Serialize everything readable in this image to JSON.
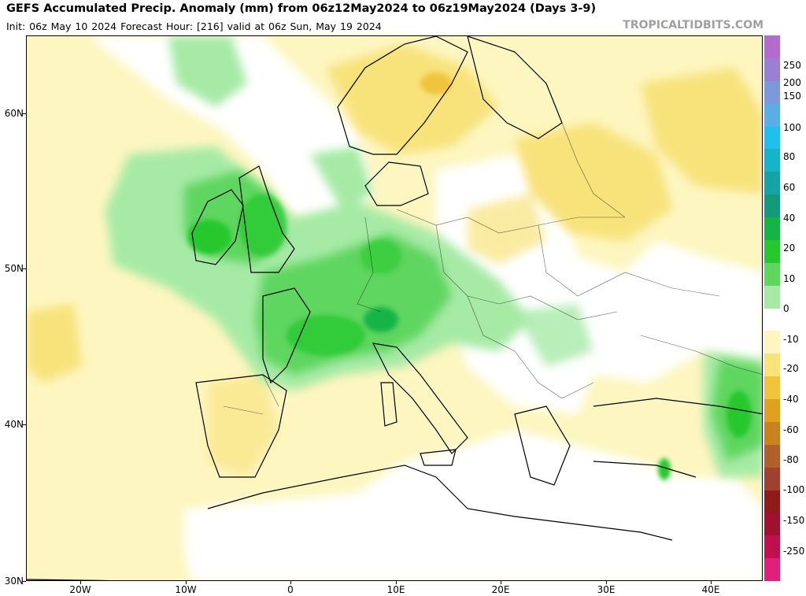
{
  "header": {
    "title": "GEFS Accumulated Precip. Anomaly (mm) from 06z12May2024 to 06z19May2024 (Days 3-9)",
    "subtitle": "Init: 06z May 10 2024   Forecast Hour: [216]   valid at 06z Sun, May 19 2024",
    "credit": "TROPICALTIDBITS.COM"
  },
  "axes": {
    "lat_labels": [
      "60N",
      "50N",
      "40N",
      "30N"
    ],
    "lon_labels": [
      "20W",
      "10W",
      "0",
      "10E",
      "20E",
      "30E",
      "40E"
    ]
  },
  "legend": {
    "labels": [
      "250",
      "200",
      "150",
      "100",
      "80",
      "60",
      "40",
      "20",
      "10",
      "0",
      "-10",
      "-20",
      "-40",
      "-60",
      "-80",
      "-100",
      "-150",
      "-250"
    ],
    "colors": [
      "#b36bcc",
      "#9b7fd4",
      "#7f98dc",
      "#5aaee6",
      "#1ec0ec",
      "#15b4c8",
      "#16a3a4",
      "#129a7a",
      "#14b446",
      "#26c82e",
      "#5fd65e",
      "#a6eaa6",
      "#ffffff",
      "#fdf6c0",
      "#f8e27a",
      "#f0c43c",
      "#e0a020",
      "#c8821e",
      "#b0602a",
      "#a0402e",
      "#901a1a",
      "#a01030",
      "#c01050",
      "#e0207a"
    ]
  }
}
